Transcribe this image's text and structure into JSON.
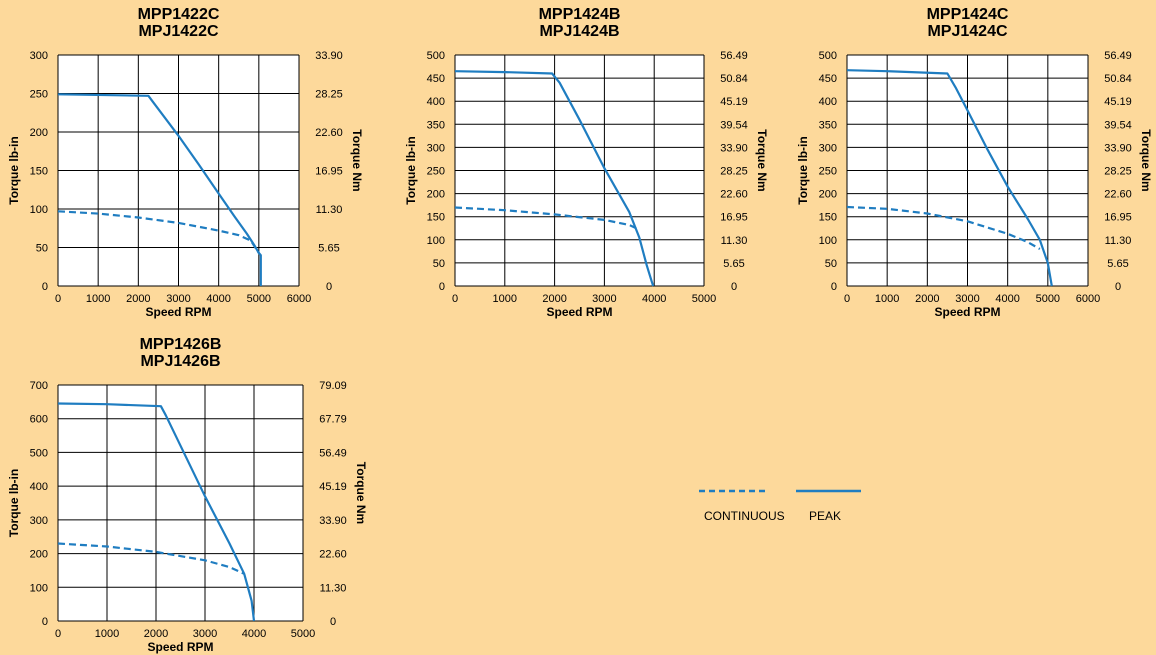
{
  "colors": {
    "background": "#fdd99b",
    "line": "#1f7dc1",
    "plot_bg": "#ffffff",
    "grid": "#000000"
  },
  "legend": {
    "continuous": "CONTINUOUS",
    "peak": "PEAK"
  },
  "chart_data": [
    {
      "type": "line",
      "title": [
        "MPP1422C",
        "MPJ1422C"
      ],
      "xlabel": "Speed RPM",
      "ylabel": "Torque lb-in",
      "y2label": "Torque Nm",
      "x_ticks": [
        "0",
        "1000",
        "2000",
        "3000",
        "4000",
        "5000",
        "6000"
      ],
      "y_ticks": [
        "0",
        "50",
        "100",
        "150",
        "200",
        "250",
        "300"
      ],
      "y2_ticks": [
        "0",
        "5.65",
        "11.30",
        "16.95",
        "22.60",
        "28.25",
        "33.90"
      ],
      "xlim": [
        0,
        6000
      ],
      "ylim": [
        0,
        300
      ],
      "series": [
        {
          "name": "CONTINUOUS",
          "style": "dashed",
          "x": [
            0,
            1000,
            2000,
            3000,
            4000,
            4500,
            4800,
            5000
          ],
          "y": [
            97,
            94,
            89,
            82,
            72,
            66,
            59,
            43
          ]
        },
        {
          "name": "PEAK",
          "style": "solid",
          "x": [
            0,
            2250,
            2350,
            3000,
            3500,
            4000,
            4400,
            4700,
            4900,
            5000,
            5050,
            5050
          ],
          "y": [
            249,
            247,
            240,
            195,
            158,
            120,
            90,
            68,
            52,
            43,
            40,
            0
          ]
        }
      ]
    },
    {
      "type": "line",
      "title": [
        "MPP1424B",
        "MPJ1424B"
      ],
      "xlabel": "Speed RPM",
      "ylabel": "Torque lb-in",
      "y2label": "Torque Nm",
      "x_ticks": [
        "0",
        "1000",
        "2000",
        "3000",
        "4000",
        "5000"
      ],
      "y_ticks": [
        "0",
        "50",
        "100",
        "150",
        "200",
        "250",
        "300",
        "350",
        "400",
        "450",
        "500"
      ],
      "y2_ticks": [
        "0",
        "5.65",
        "11.30",
        "16.95",
        "22.60",
        "28.25",
        "33.90",
        "39.54",
        "45.19",
        "50.84",
        "56.49"
      ],
      "xlim": [
        0,
        5000
      ],
      "ylim": [
        0,
        500
      ],
      "series": [
        {
          "name": "CONTINUOUS",
          "style": "dashed",
          "x": [
            0,
            1000,
            2000,
            3000,
            3500,
            3700
          ],
          "y": [
            170,
            164,
            155,
            143,
            132,
            122
          ]
        },
        {
          "name": "PEAK",
          "style": "solid",
          "x": [
            0,
            1000,
            1950,
            2100,
            2500,
            3000,
            3500,
            3700,
            3850,
            3950,
            3980
          ],
          "y": [
            465,
            463,
            460,
            440,
            360,
            255,
            160,
            105,
            45,
            10,
            0
          ]
        }
      ]
    },
    {
      "type": "line",
      "title": [
        "MPP1424C",
        "MPJ1424C"
      ],
      "xlabel": "Speed RPM",
      "ylabel": "Torque lb-in",
      "y2label": "Torque Nm",
      "x_ticks": [
        "0",
        "1000",
        "2000",
        "3000",
        "4000",
        "5000",
        "6000"
      ],
      "y_ticks": [
        "0",
        "50",
        "100",
        "150",
        "200",
        "250",
        "300",
        "350",
        "400",
        "450",
        "500"
      ],
      "y2_ticks": [
        "0",
        "5.65",
        "11.30",
        "16.95",
        "22.60",
        "28.25",
        "33.90",
        "39.54",
        "45.19",
        "50.84",
        "56.49"
      ],
      "xlim": [
        0,
        6000
      ],
      "ylim": [
        0,
        500
      ],
      "series": [
        {
          "name": "CONTINUOUS",
          "style": "dashed",
          "x": [
            0,
            1000,
            2000,
            3000,
            4000,
            4500,
            4800
          ],
          "y": [
            171,
            167,
            157,
            140,
            113,
            95,
            80
          ]
        },
        {
          "name": "PEAK",
          "style": "solid",
          "x": [
            0,
            1000,
            2500,
            2700,
            3000,
            3500,
            4000,
            4500,
            4800,
            5000,
            5100
          ],
          "y": [
            467,
            465,
            460,
            430,
            380,
            295,
            215,
            145,
            100,
            50,
            0
          ]
        }
      ]
    },
    {
      "type": "line",
      "title": [
        "MPP1426B",
        "MPJ1426B"
      ],
      "xlabel": "Speed RPM",
      "ylabel": "Torque lb-in",
      "y2label": "Torque Nm",
      "x_ticks": [
        "0",
        "1000",
        "2000",
        "3000",
        "4000",
        "5000"
      ],
      "y_ticks": [
        "0",
        "100",
        "200",
        "300",
        "400",
        "500",
        "600",
        "700"
      ],
      "y2_ticks": [
        "0",
        "11.30",
        "22.60",
        "33.90",
        "45.19",
        "56.49",
        "67.79",
        "79.09"
      ],
      "xlim": [
        0,
        5000
      ],
      "ylim": [
        0,
        700
      ],
      "series": [
        {
          "name": "CONTINUOUS",
          "style": "dashed",
          "x": [
            0,
            1000,
            2000,
            3000,
            3500,
            3800
          ],
          "y": [
            230,
            221,
            205,
            180,
            160,
            140
          ]
        },
        {
          "name": "PEAK",
          "style": "solid",
          "x": [
            0,
            1000,
            2100,
            2200,
            2500,
            3000,
            3500,
            3800,
            3950,
            4000
          ],
          "y": [
            645,
            643,
            637,
            610,
            520,
            370,
            230,
            140,
            60,
            0
          ]
        }
      ]
    }
  ]
}
